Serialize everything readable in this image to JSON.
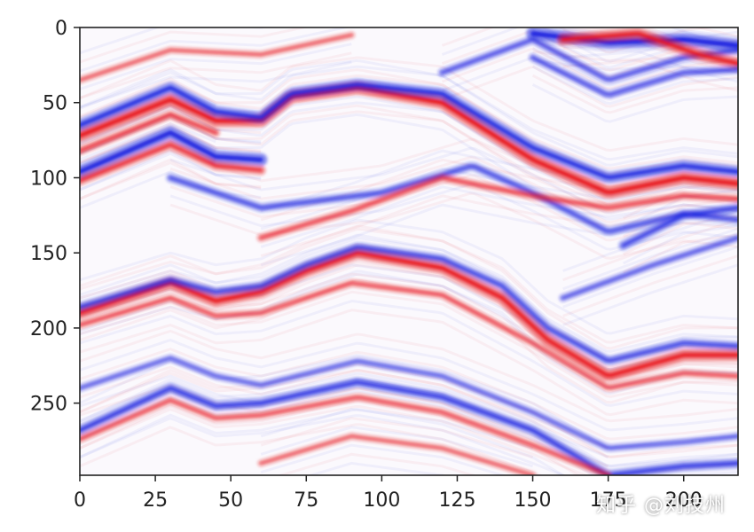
{
  "chart_data": {
    "type": "heatmap",
    "title": "",
    "xlabel": "",
    "ylabel": "",
    "xlim": [
      0,
      218
    ],
    "ylim": [
      298,
      0
    ],
    "x_ticks": [
      "0",
      "25",
      "50",
      "75",
      "100",
      "125",
      "150",
      "175",
      "200"
    ],
    "y_ticks": [
      "0",
      "50",
      "100",
      "150",
      "200",
      "250"
    ],
    "colormap": "seismic",
    "color_positive": "#e8141b",
    "color_negative": "#1a22e0",
    "color_zero": "#ffffff",
    "horizons": [
      {
        "points": [
          [
            0,
            72
          ],
          [
            30,
            48
          ],
          [
            45,
            62
          ],
          [
            60,
            62
          ],
          [
            70,
            46
          ],
          [
            92,
            40
          ],
          [
            120,
            50
          ],
          [
            150,
            88
          ],
          [
            175,
            110
          ],
          [
            200,
            100
          ],
          [
            218,
            104
          ]
        ],
        "polarity": "positive",
        "amplitude": 0.95
      },
      {
        "points": [
          [
            0,
            65
          ],
          [
            30,
            40
          ],
          [
            45,
            56
          ],
          [
            60,
            60
          ],
          [
            70,
            44
          ],
          [
            92,
            38
          ],
          [
            120,
            44
          ],
          [
            150,
            80
          ],
          [
            175,
            100
          ],
          [
            200,
            92
          ],
          [
            218,
            96
          ]
        ],
        "polarity": "negative",
        "amplitude": 0.8
      },
      {
        "points": [
          [
            0,
            82
          ],
          [
            30,
            58
          ],
          [
            45,
            70
          ]
        ],
        "polarity": "positive",
        "amplitude": 0.5
      },
      {
        "points": [
          [
            0,
            96
          ],
          [
            30,
            70
          ],
          [
            45,
            86
          ],
          [
            60,
            88
          ]
        ],
        "polarity": "negative",
        "amplitude": 0.95
      },
      {
        "points": [
          [
            0,
            102
          ],
          [
            30,
            78
          ],
          [
            45,
            92
          ],
          [
            60,
            95
          ]
        ],
        "polarity": "positive",
        "amplitude": 0.6
      },
      {
        "points": [
          [
            30,
            100
          ],
          [
            60,
            120
          ],
          [
            100,
            110
          ],
          [
            130,
            92
          ],
          [
            150,
            110
          ],
          [
            175,
            136
          ],
          [
            200,
            124
          ],
          [
            218,
            128
          ]
        ],
        "polarity": "negative",
        "amplitude": 0.5
      },
      {
        "points": [
          [
            60,
            140
          ],
          [
            90,
            122
          ],
          [
            120,
            100
          ],
          [
            150,
            112
          ],
          [
            175,
            120
          ],
          [
            200,
            112
          ],
          [
            218,
            114
          ]
        ],
        "polarity": "positive",
        "amplitude": 0.45
      },
      {
        "points": [
          [
            0,
            190
          ],
          [
            30,
            170
          ],
          [
            45,
            182
          ],
          [
            60,
            176
          ],
          [
            75,
            162
          ],
          [
            92,
            150
          ],
          [
            120,
            160
          ],
          [
            140,
            180
          ],
          [
            155,
            208
          ],
          [
            175,
            232
          ],
          [
            200,
            218
          ],
          [
            218,
            218
          ]
        ],
        "polarity": "positive",
        "amplitude": 0.9
      },
      {
        "points": [
          [
            0,
            186
          ],
          [
            30,
            168
          ],
          [
            45,
            176
          ],
          [
            60,
            172
          ],
          [
            75,
            158
          ],
          [
            92,
            146
          ],
          [
            120,
            154
          ],
          [
            140,
            172
          ],
          [
            155,
            200
          ],
          [
            175,
            222
          ],
          [
            200,
            210
          ],
          [
            218,
            212
          ]
        ],
        "polarity": "negative",
        "amplitude": 0.55
      },
      {
        "points": [
          [
            0,
            198
          ],
          [
            30,
            180
          ],
          [
            45,
            192
          ],
          [
            60,
            190
          ],
          [
            90,
            170
          ],
          [
            120,
            178
          ],
          [
            150,
            210
          ],
          [
            175,
            240
          ],
          [
            200,
            230
          ],
          [
            218,
            232
          ]
        ],
        "polarity": "positive",
        "amplitude": 0.4
      },
      {
        "points": [
          [
            160,
            180
          ],
          [
            190,
            158
          ],
          [
            218,
            140
          ]
        ],
        "polarity": "negative",
        "amplitude": 0.4
      },
      {
        "points": [
          [
            0,
            240
          ],
          [
            30,
            220
          ],
          [
            45,
            232
          ],
          [
            60,
            238
          ],
          [
            92,
            222
          ],
          [
            120,
            232
          ],
          [
            150,
            256
          ],
          [
            175,
            280
          ],
          [
            200,
            276
          ],
          [
            218,
            272
          ]
        ],
        "polarity": "negative",
        "amplitude": 0.35
      },
      {
        "points": [
          [
            0,
            268
          ],
          [
            30,
            240
          ],
          [
            45,
            252
          ],
          [
            60,
            250
          ],
          [
            92,
            236
          ],
          [
            120,
            246
          ],
          [
            150,
            268
          ],
          [
            175,
            298
          ],
          [
            200,
            292
          ],
          [
            218,
            290
          ]
        ],
        "polarity": "negative",
        "amplitude": 0.65
      },
      {
        "points": [
          [
            0,
            274
          ],
          [
            30,
            248
          ],
          [
            45,
            260
          ],
          [
            60,
            258
          ],
          [
            92,
            246
          ],
          [
            120,
            256
          ],
          [
            150,
            278
          ],
          [
            175,
            298
          ]
        ],
        "polarity": "positive",
        "amplitude": 0.4
      },
      {
        "points": [
          [
            0,
            35
          ],
          [
            30,
            15
          ],
          [
            60,
            18
          ],
          [
            90,
            5
          ]
        ],
        "polarity": "positive",
        "amplitude": 0.3
      },
      {
        "points": [
          [
            120,
            30
          ],
          [
            150,
            8
          ],
          [
            175,
            35
          ],
          [
            200,
            20
          ],
          [
            218,
            15
          ]
        ],
        "polarity": "negative",
        "amplitude": 0.45
      },
      {
        "points": [
          [
            150,
            4
          ],
          [
            175,
            10
          ],
          [
            200,
            8
          ],
          [
            218,
            12
          ]
        ],
        "polarity": "negative",
        "amplitude": 1.0
      },
      {
        "points": [
          [
            160,
            8
          ],
          [
            185,
            4
          ],
          [
            205,
            18
          ],
          [
            218,
            24
          ]
        ],
        "polarity": "positive",
        "amplitude": 0.85
      },
      {
        "points": [
          [
            150,
            20
          ],
          [
            175,
            45
          ],
          [
            200,
            30
          ],
          [
            218,
            28
          ]
        ],
        "polarity": "negative",
        "amplitude": 0.45
      },
      {
        "points": [
          [
            180,
            145
          ],
          [
            200,
            125
          ],
          [
            218,
            120
          ]
        ],
        "polarity": "negative",
        "amplitude": 0.6
      },
      {
        "points": [
          [
            60,
            290
          ],
          [
            90,
            272
          ],
          [
            120,
            280
          ],
          [
            150,
            298
          ]
        ],
        "polarity": "positive",
        "amplitude": 0.3
      }
    ]
  },
  "watermark": "知乎 @刘技州"
}
